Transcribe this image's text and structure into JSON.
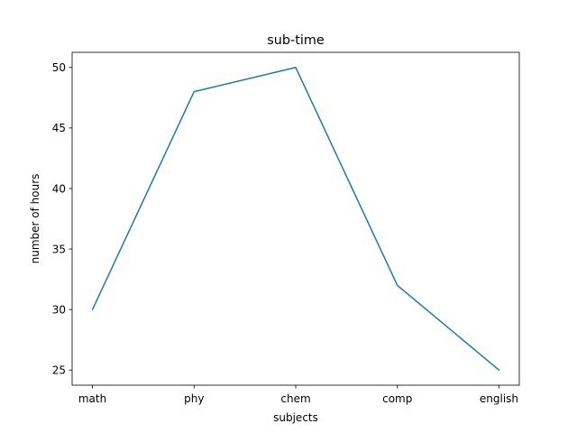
{
  "chart_data": {
    "type": "line",
    "title": "sub-time",
    "xlabel": "subjects",
    "ylabel": "number of hours",
    "categories": [
      "math",
      "phy",
      "chem",
      "comp",
      "english"
    ],
    "series": [
      {
        "values": [
          30,
          48,
          50,
          32,
          25
        ],
        "color": "#1f77b4"
      }
    ],
    "ylim": [
      23.75,
      51.25
    ],
    "yticks": [
      25,
      30,
      35,
      40,
      45,
      50
    ],
    "grid": false
  }
}
